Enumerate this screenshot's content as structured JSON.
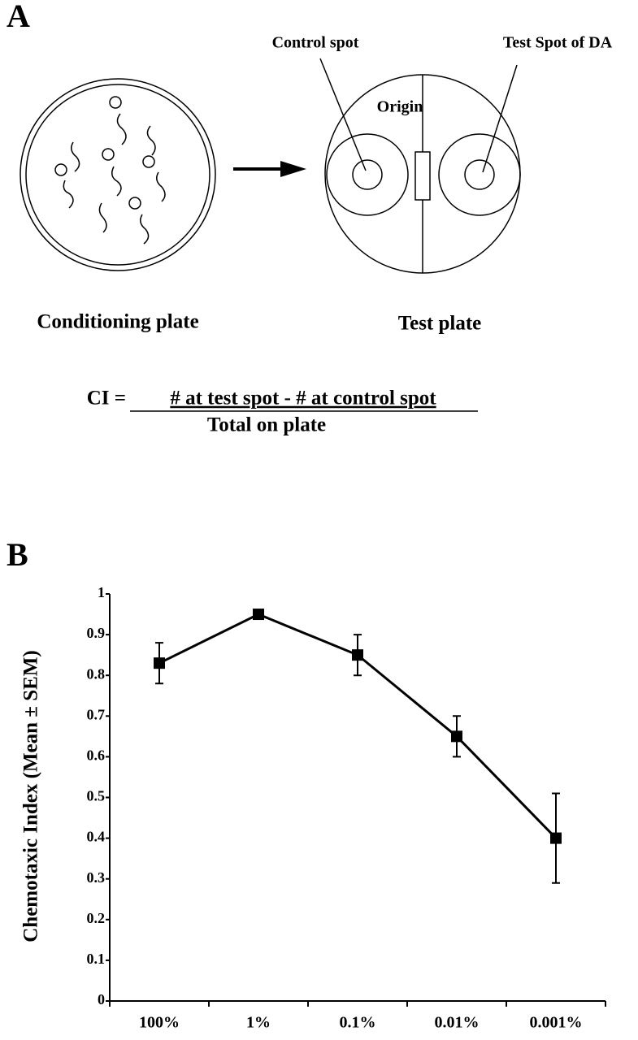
{
  "diagram": {
    "panel_label": "A",
    "control_label": "Control spot",
    "test_label": "Test Spot of DA",
    "origin_label": "Origin",
    "conditioning_caption": "Conditioning plate",
    "test_caption": "Test plate",
    "ci_lhs": "CI =",
    "ci_numerator": "# at test spot - # at control spot",
    "ci_denominator": "Total on plate"
  },
  "chart_data": {
    "type": "line",
    "panel_label": "B",
    "y_label": "Chemotaxic Index (Mean ± SEM)",
    "categories": [
      "100%",
      "1%",
      "0.1%",
      "0.01%",
      "0.001%"
    ],
    "values": [
      0.83,
      0.95,
      0.85,
      0.65,
      0.4
    ],
    "errors": [
      0.05,
      0,
      0.05,
      0.05,
      0.11
    ],
    "color": "#000000",
    "ylim": [
      0,
      1
    ],
    "yticks": [
      0,
      0.1,
      0.2,
      0.3,
      0.4,
      0.5,
      0.6,
      0.7,
      0.8,
      0.9,
      1
    ]
  }
}
